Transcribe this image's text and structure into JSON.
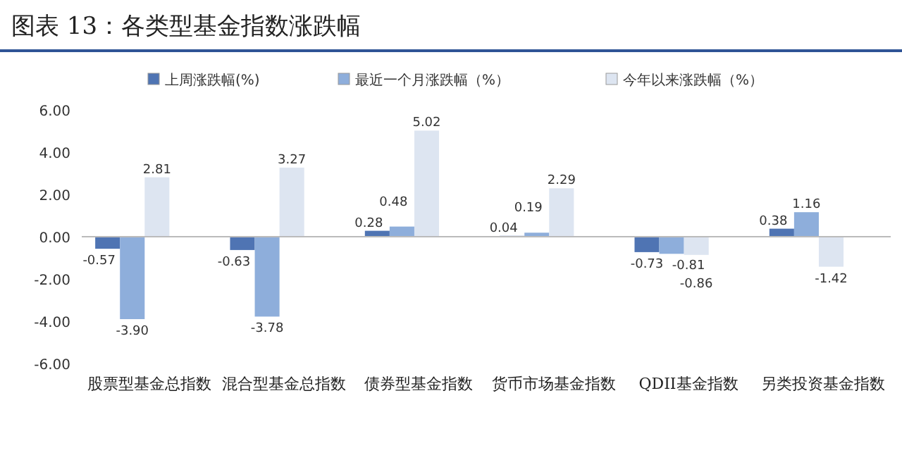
{
  "chart_data": {
    "type": "bar",
    "title": "图表 13：各类型基金指数涨跌幅",
    "categories": [
      "股票型基金总指数",
      "混合型基金总指数",
      "债券型基金指数",
      "货币市场基金指数",
      "QDII基金指数",
      "另类投资基金指数"
    ],
    "series": [
      {
        "name": "上周涨跌幅(%)",
        "color": "#4f74b3",
        "values": [
          -0.57,
          -0.63,
          0.28,
          0.04,
          -0.73,
          0.38
        ],
        "value_labels": [
          "-0.57",
          "-0.63",
          "0.28",
          "0.04",
          "-0.73",
          "0.38"
        ]
      },
      {
        "name": "最近一个月涨跌幅（%）",
        "color": "#8eaedb",
        "values": [
          -3.9,
          -3.78,
          0.48,
          0.19,
          -0.81,
          1.16
        ],
        "value_labels": [
          "-3.90",
          "-3.78",
          "0.48",
          "0.19",
          "-0.81",
          "1.16"
        ]
      },
      {
        "name": "今年以来涨跌幅（%）",
        "color": "#dde5f1",
        "values": [
          2.81,
          3.27,
          5.02,
          2.29,
          -0.86,
          -1.42
        ],
        "value_labels": [
          "2.81",
          "3.27",
          "5.02",
          "2.29",
          "-0.86",
          "-1.42"
        ]
      }
    ],
    "ylim": [
      -6,
      6
    ],
    "yticks": [
      {
        "value": -6,
        "label": "-6.00"
      },
      {
        "value": -4,
        "label": "-4.00"
      },
      {
        "value": -2,
        "label": "-2.00"
      },
      {
        "value": 0,
        "label": "0.00"
      },
      {
        "value": 2,
        "label": "2.00"
      },
      {
        "value": 4,
        "label": "4.00"
      },
      {
        "value": 6,
        "label": "6.00"
      }
    ],
    "legend": "top"
  }
}
